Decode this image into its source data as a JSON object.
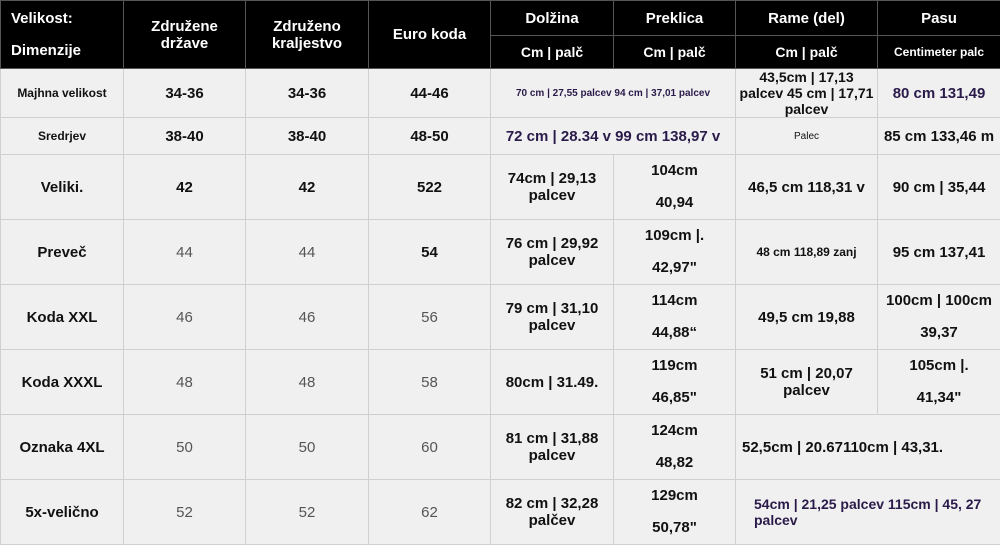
{
  "headers": {
    "dimension": [
      "Velikost:",
      "Dimenzije"
    ],
    "country": "Združene države",
    "uk": "Združeno kraljestvo",
    "euro": "Euro koda",
    "length": "Dolžina",
    "chest": "Preklica",
    "shoulder": "Rame (del)",
    "waist": "Pasu",
    "unit_cm_inch": "Cm | palč",
    "unit_waist": "Centimeter palc"
  },
  "rows": [
    {
      "size": "Majhna velikost",
      "us": "34-36",
      "uk": "34-36",
      "eu": "44-46",
      "length": "70 cm | 27,55 palcev 94 cm | 37,01 palcev",
      "chest": "",
      "shoulder": "43,5cm | 17,13 palcev 45 cm | 17,71 palcev",
      "waist": "80 cm 131,49"
    },
    {
      "size": "Sredrjev",
      "us": "38-40",
      "uk": "38-40",
      "eu": "48-50",
      "length": "72 cm | 28.34 v 99 cm 138,97 v",
      "chest": "",
      "shoulder": "Palec",
      "waist": "85 cm 133,46 m"
    },
    {
      "size": "Veliki.",
      "us": "42",
      "uk": "42",
      "eu": "522",
      "length": "74cm | 29,13 palcev",
      "chest": [
        "104cm",
        "40,94"
      ],
      "shoulder": "46,5 cm 118,31 v",
      "waist": "90 cm | 35,44"
    },
    {
      "size": "Preveč",
      "us": "44",
      "uk": "44",
      "eu": "54",
      "length": "76 cm | 29,92 palcev",
      "chest": [
        "109cm |.",
        "42,97\""
      ],
      "shoulder": "48 cm 118,89 zanj",
      "waist": "95 cm 137,41"
    },
    {
      "size": "Koda XXL",
      "us": "46",
      "uk": "46",
      "eu": "56",
      "length": "79 cm | 31,10 palcev",
      "chest": [
        "114cm",
        "44,88“"
      ],
      "shoulder": "49,5 cm 19,88",
      "waist": [
        "100cm | 100cm",
        "39,37"
      ]
    },
    {
      "size": "Koda XXXL",
      "us": "48",
      "uk": "48",
      "eu": "58",
      "length": "80cm | 31.49.",
      "chest": [
        "119cm",
        "46,85\""
      ],
      "shoulder": "51 cm | 20,07 palcev",
      "waist": [
        "105cm |.",
        "41,34\""
      ]
    },
    {
      "size": "Oznaka 4XL",
      "us": "50",
      "uk": "50",
      "eu": "60",
      "length": "81 cm | 31,88 palcev",
      "chest": [
        "124cm",
        "48,82"
      ],
      "shoulder": "52,5cm | 20.67110cm | 43,31.",
      "waist": ""
    },
    {
      "size": "5x-velično",
      "us": "52",
      "uk": "52",
      "eu": "62",
      "length": "82 cm | 32,28 palčev",
      "chest": [
        "129cm",
        "50,78\""
      ],
      "shoulder": "54cm | 21,25 palcev 115cm | 45, 27 palcev",
      "waist": ""
    }
  ]
}
